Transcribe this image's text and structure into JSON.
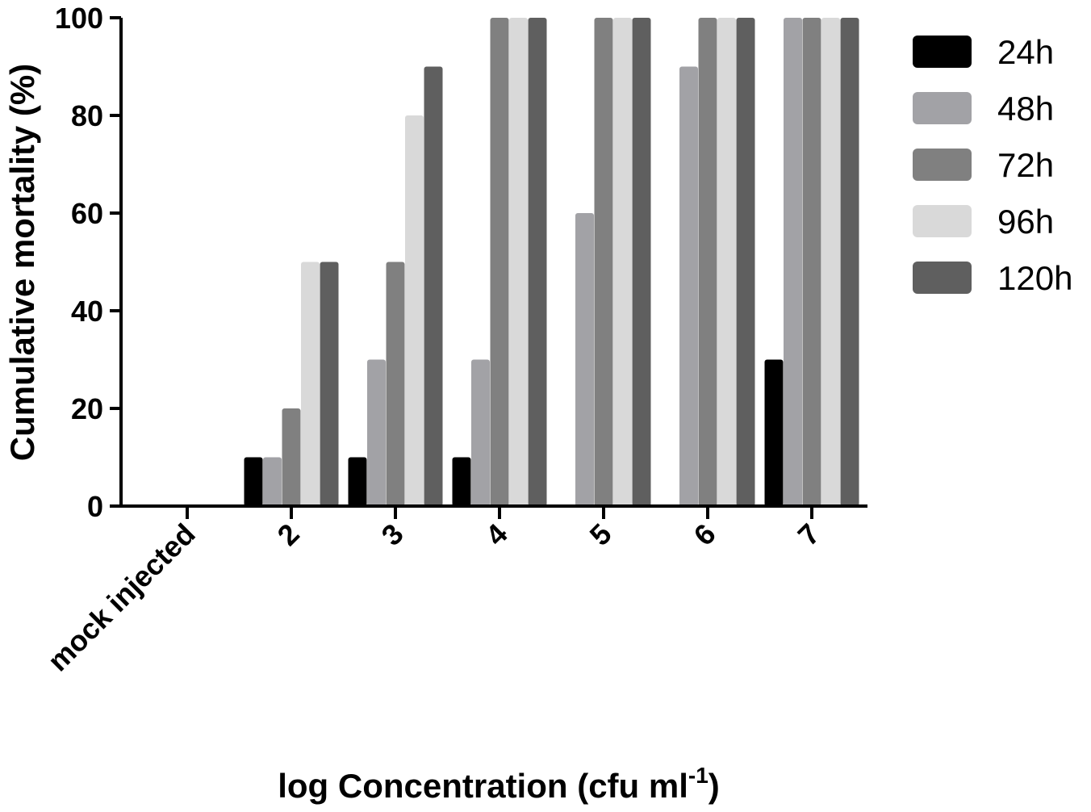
{
  "chart_data": {
    "type": "bar",
    "xlabel": "log Concentration (cfu ml",
    "xlabel_superscript": "-1",
    "xlabel_suffix": ")",
    "ylabel": "Cumulative mortality (%)",
    "ylim": [
      0,
      100
    ],
    "yticks": [
      0,
      20,
      40,
      60,
      80,
      100
    ],
    "categories": [
      "mock injected",
      "2",
      "3",
      "4",
      "5",
      "6",
      "7"
    ],
    "legend_position": "right",
    "series": [
      {
        "name": "24h",
        "color": "#000000",
        "values": [
          0,
          10,
          10,
          10,
          0,
          0,
          30
        ]
      },
      {
        "name": "48h",
        "color": "#a2a2a6",
        "values": [
          0,
          10,
          30,
          30,
          60,
          90,
          100
        ]
      },
      {
        "name": "72h",
        "color": "#808080",
        "values": [
          0,
          20,
          50,
          100,
          100,
          100,
          100
        ]
      },
      {
        "name": "96h",
        "color": "#d9d9d9",
        "values": [
          0,
          50,
          80,
          100,
          100,
          100,
          100
        ]
      },
      {
        "name": "120h",
        "color": "#5f5f5f",
        "values": [
          0,
          50,
          90,
          100,
          100,
          100,
          100
        ]
      }
    ]
  }
}
